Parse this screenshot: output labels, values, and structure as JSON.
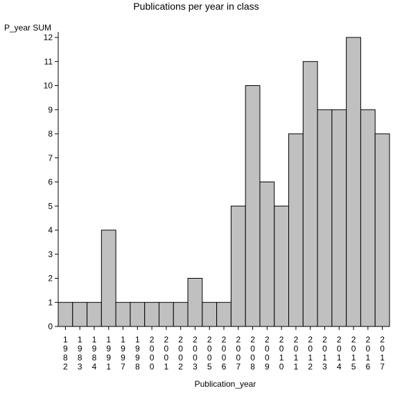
{
  "chart_data": {
    "type": "bar",
    "title": "Publications per year in class",
    "ylabel": "P_year SUM",
    "xlabel": "Publication_year",
    "categories": [
      "1982",
      "1983",
      "1984",
      "1991",
      "1997",
      "1998",
      "2000",
      "2001",
      "2002",
      "2003",
      "2005",
      "2006",
      "2007",
      "2008",
      "2009",
      "2010",
      "2011",
      "2012",
      "2013",
      "2014",
      "2015",
      "2016",
      "2017"
    ],
    "values": [
      1,
      1,
      1,
      4,
      1,
      1,
      1,
      1,
      1,
      2,
      1,
      1,
      5,
      10,
      6,
      5,
      8,
      11,
      9,
      9,
      12,
      9,
      8
    ],
    "ylim": [
      0,
      12
    ],
    "yticks": [
      0,
      1,
      2,
      3,
      4,
      5,
      6,
      7,
      8,
      9,
      10,
      11,
      12
    ],
    "grid": false,
    "bar_color": "#c0c0c0",
    "edge_color": "#000000"
  }
}
